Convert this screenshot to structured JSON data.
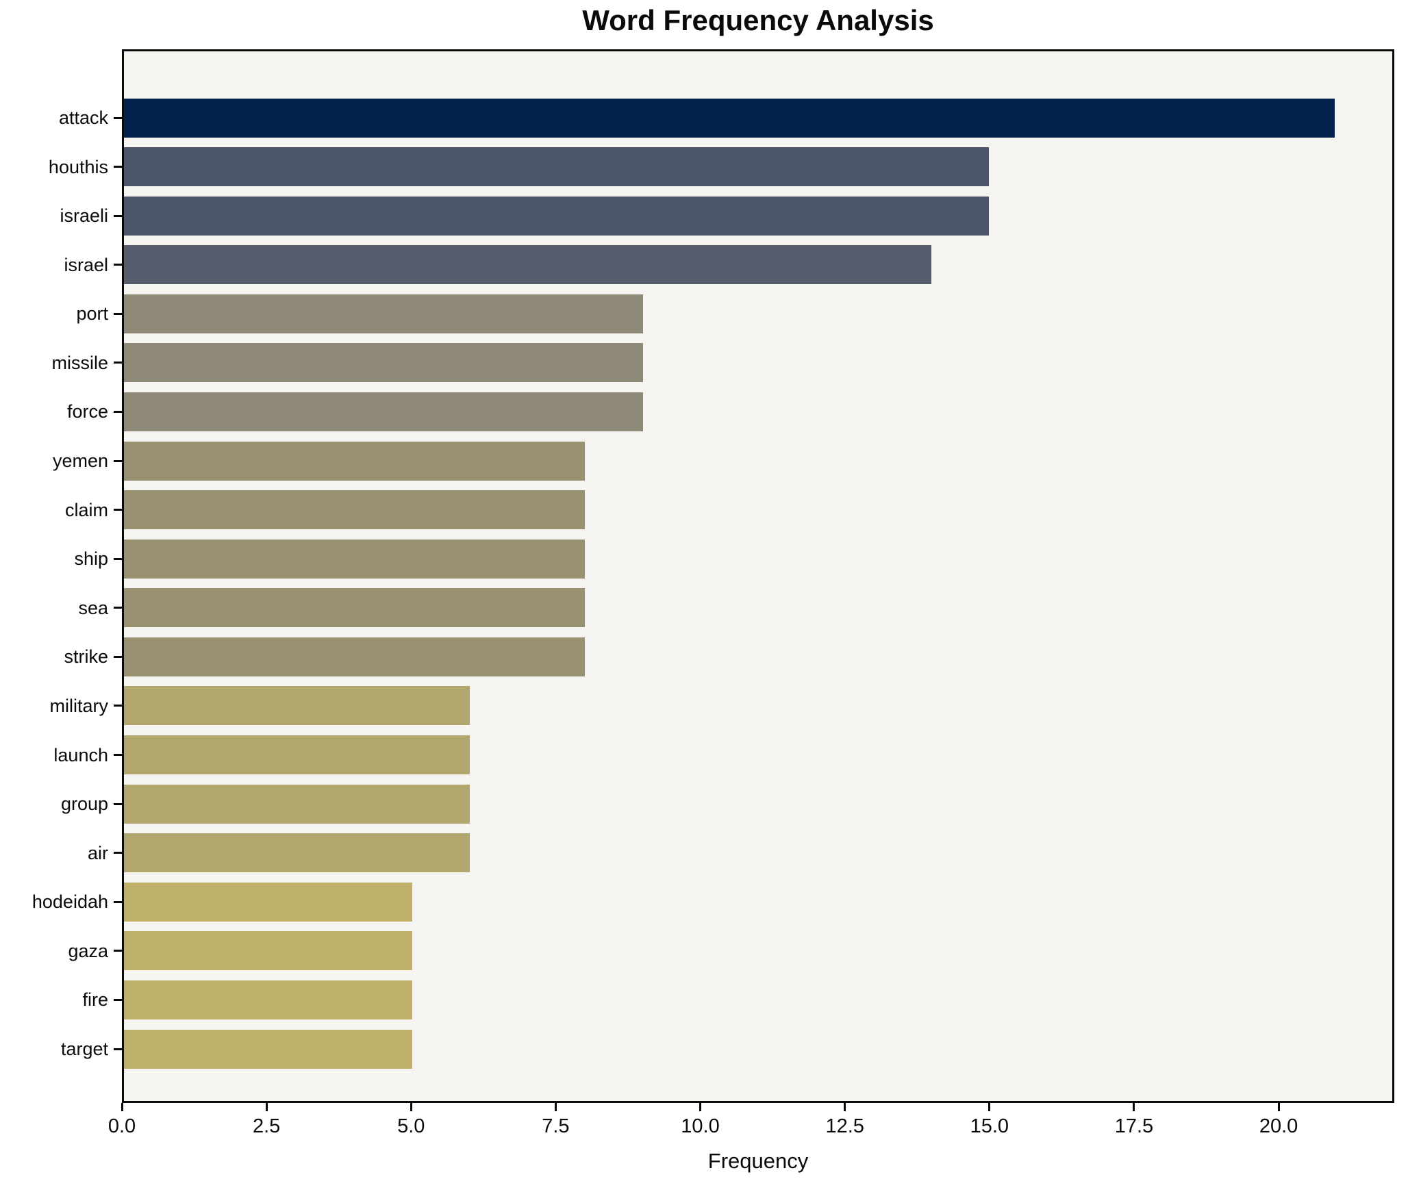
{
  "title": "Word Frequency Analysis",
  "chart_data": {
    "type": "bar",
    "orientation": "horizontal",
    "title": "Word Frequency Analysis",
    "xlabel": "Frequency",
    "ylabel": "",
    "categories": [
      "attack",
      "houthis",
      "israeli",
      "israel",
      "port",
      "missile",
      "force",
      "yemen",
      "claim",
      "ship",
      "sea",
      "strike",
      "military",
      "launch",
      "group",
      "air",
      "hodeidah",
      "gaza",
      "fire",
      "target"
    ],
    "values": [
      21,
      15,
      15,
      14,
      9,
      9,
      9,
      8,
      8,
      8,
      8,
      8,
      6,
      6,
      6,
      6,
      5,
      5,
      5,
      5
    ],
    "bar_colors": [
      "#02234d",
      "#4d566c",
      "#4d566c",
      "#565e6e",
      "#8e8877",
      "#8e8877",
      "#8e8877",
      "#989272",
      "#989272",
      "#989272",
      "#989272",
      "#989272",
      "#b1a76e",
      "#b1a76e",
      "#b1a76e",
      "#b1a76e",
      "#bfb169",
      "#bfb169",
      "#bfb169",
      "#bfb169"
    ],
    "xlim": [
      0,
      22
    ],
    "x_ticks": [
      "0.0",
      "2.5",
      "5.0",
      "7.5",
      "10.0",
      "12.5",
      "15.0",
      "17.5",
      "20.0"
    ],
    "grid": false,
    "legend_position": "none",
    "plot_background": "#f5f4f1",
    "figure_background": "#ffffff",
    "spine_color": "#0a0a0a",
    "text_color": "#0a0a0a"
  }
}
